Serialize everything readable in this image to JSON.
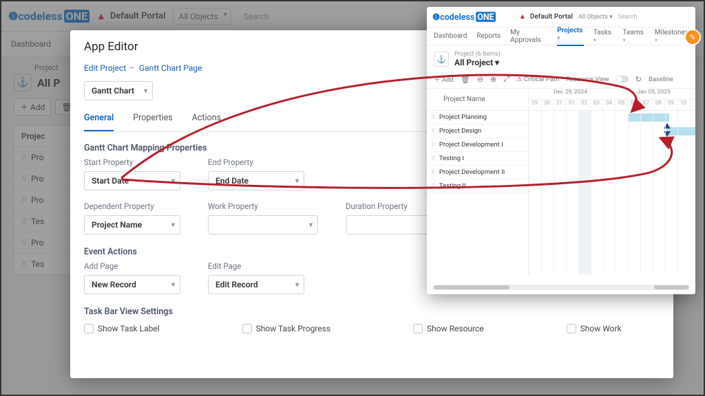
{
  "brand": {
    "codeless": "codeless",
    "one": "ONE"
  },
  "bg": {
    "portal": "Default Portal",
    "allObjects": "All Objects",
    "search": "Search",
    "tabDashboard": "Dashboard",
    "crumb": "Project",
    "title": "All P",
    "addBtn": "Add",
    "th": "Projec",
    "rows": [
      "Pro",
      "Pro",
      "Pro",
      "Tes",
      "Pro",
      "Tes"
    ]
  },
  "modal": {
    "title": "App Editor",
    "crumbs": {
      "a": "Edit",
      "b": "Project",
      "c": "Gantt Chart",
      "d": "Page"
    },
    "ganttSel": "Gantt Chart",
    "tabs": {
      "general": "General",
      "props": "Properties",
      "actions": "Actions"
    },
    "mapHeader": "Gantt Chart Mapping Properties",
    "startLabel": "Start Property",
    "startVal": "Start Date",
    "endLabel": "End Property",
    "endVal": "End Date",
    "depLabel": "Dependent Property",
    "depVal": "Project Name",
    "workLabel": "Work Property",
    "durLabel": "Duration Property",
    "evHeader": "Event Actions",
    "addPageLabel": "Add Page",
    "addPageVal": "New Record",
    "editPageLabel": "Edit Page",
    "editPageVal": "Edit Record",
    "tbHeader": "Task Bar View Settings",
    "chk1": "Show Task Label",
    "chk2": "Show Task Progress",
    "chk3": "Show Resource",
    "chk4": "Show Work"
  },
  "pv": {
    "portal": "Default Portal",
    "allObjects": "All Objects",
    "search": "Search",
    "nav": {
      "dashboard": "Dashboard",
      "reports": "Reports",
      "approvals": "My Approvals",
      "projects": "Projects",
      "tasks": "Tasks",
      "teams": "Teams",
      "milestones": "Milestones"
    },
    "sub": "Project (6 Items)",
    "title": "All Project",
    "tb": {
      "add": "Add",
      "crit": "Critical Path",
      "res": "Resource View",
      "base": "Baseline"
    },
    "dates": {
      "a": "Dec 29, 2024",
      "b": "Jan 05, 2025"
    },
    "days": [
      "29",
      "30",
      "31",
      "01",
      "02",
      "03",
      "04",
      "05",
      "06",
      "07",
      "08",
      "09",
      "10"
    ],
    "colHeader": "Project Name",
    "rows": [
      "Project Planning",
      "Project Design",
      "Project Development I",
      "Testing I",
      "Project Development II",
      "Testing II"
    ]
  }
}
